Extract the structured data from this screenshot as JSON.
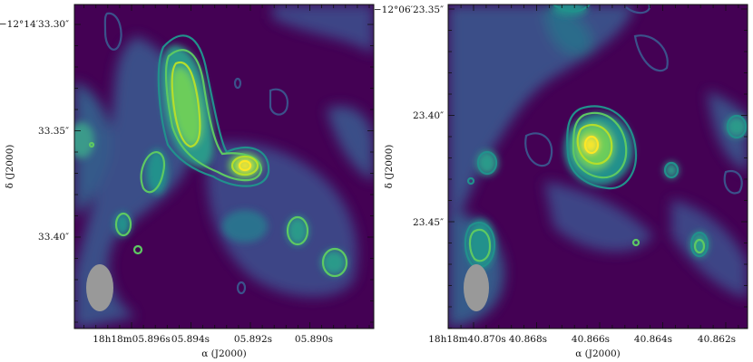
{
  "chart_data": [
    {
      "type": "heatmap",
      "xlabel": "α (J2000)",
      "ylabel": "δ (J2000)",
      "x_ticks": [
        "18h18m05.896s",
        "05.894s",
        "05.892s",
        "05.890s"
      ],
      "y_ticks": [
        "−12°14′33.30″",
        "33.35″",
        "33.40″"
      ],
      "colormap": "viridis",
      "beam_color": "#999999",
      "contour_colors": [
        "#3b528b",
        "#21918c",
        "#5ec962",
        "#b5de2b"
      ]
    },
    {
      "type": "heatmap",
      "xlabel": "α (J2000)",
      "ylabel": "δ (J2000)",
      "x_ticks": [
        "18h18m40.870s",
        "40.868s",
        "40.866s",
        "40.864s",
        "40.862s"
      ],
      "y_ticks": [
        "−12°06′23.35″",
        "23.40″",
        "23.45″"
      ],
      "colormap": "viridis",
      "beam_color": "#999999",
      "contour_colors": [
        "#3b528b",
        "#21918c",
        "#5ec962",
        "#b5de2b"
      ]
    }
  ]
}
